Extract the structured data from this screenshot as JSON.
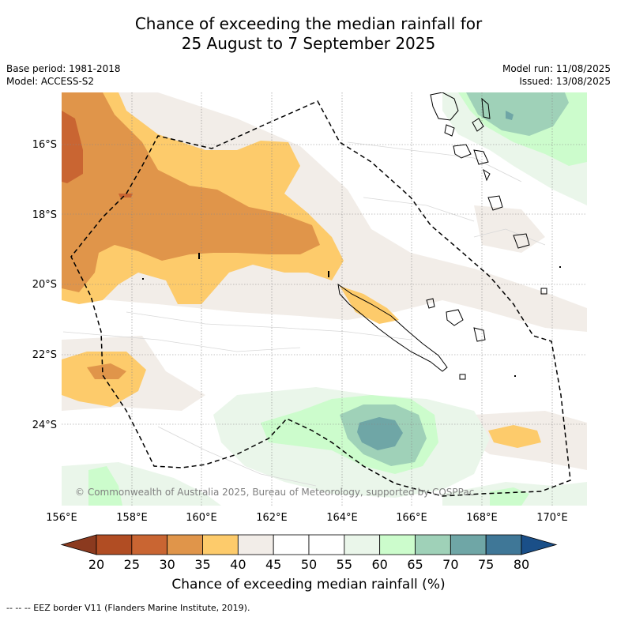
{
  "title": {
    "line1": "Chance of exceeding the median rainfall for",
    "line2": "25 August to 7 September 2025"
  },
  "meta": {
    "base_period": "Base period: 1981-2018",
    "model": "Model: ACCESS-S2",
    "model_run": "Model run: 11/08/2025",
    "issued": "Issued: 13/08/2025"
  },
  "map": {
    "lon_ticks": [
      "156°E",
      "158°E",
      "160°E",
      "162°E",
      "164°E",
      "166°E",
      "168°E",
      "170°E"
    ],
    "lat_ticks": [
      "16°S",
      "18°S",
      "20°S",
      "22°S",
      "24°S"
    ],
    "copyright": "© Commonwealth of Australia 2025, Bureau of Meteorology, supported by COSPPac"
  },
  "colorbar": {
    "ticks": [
      "20",
      "25",
      "30",
      "35",
      "40",
      "45",
      "50",
      "55",
      "60",
      "65",
      "70",
      "75",
      "80"
    ],
    "colors": [
      "#8b3a1f",
      "#b14d23",
      "#c96532",
      "#e0954a",
      "#fdcb6b",
      "#f2ede8",
      "#ffffff",
      "#ffffff",
      "#eaf6ea",
      "#ccfccc",
      "#9fd1b8",
      "#6fa6a6",
      "#3f7797",
      "#1a4f88"
    ],
    "label": "Chance of exceeding median rainfall (%)"
  },
  "footnote": "--  --  -- EEZ border V11 (Flanders Marine Institute, 2019)."
}
